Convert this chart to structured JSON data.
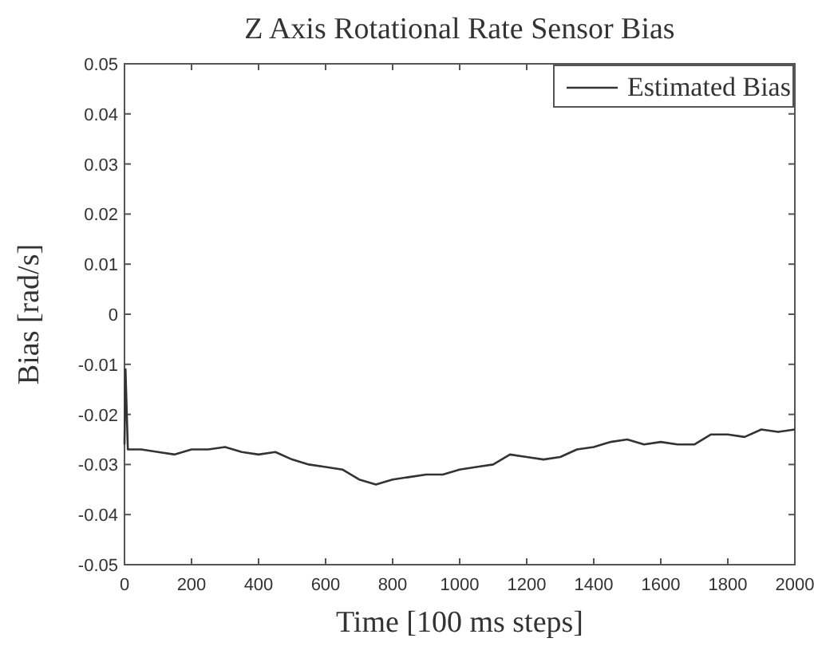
{
  "chart_data": {
    "type": "line",
    "title": "Z Axis Rotational Rate Sensor Bias",
    "xlabel": "Time [100 ms steps]",
    "ylabel": "Bias [rad/s]",
    "x": [
      0,
      3,
      10,
      50,
      100,
      150,
      200,
      250,
      300,
      350,
      400,
      450,
      500,
      550,
      600,
      650,
      700,
      750,
      800,
      850,
      900,
      950,
      1000,
      1050,
      1100,
      1150,
      1200,
      1250,
      1300,
      1350,
      1400,
      1450,
      1500,
      1550,
      1600,
      1650,
      1700,
      1750,
      1800,
      1850,
      1900,
      1950,
      2000
    ],
    "series": [
      {
        "name": "Estimated Bias",
        "color": "#333333",
        "values": [
          -0.026,
          -0.011,
          -0.027,
          -0.027,
          -0.0275,
          -0.028,
          -0.027,
          -0.027,
          -0.0265,
          -0.0275,
          -0.028,
          -0.0275,
          -0.029,
          -0.03,
          -0.0305,
          -0.031,
          -0.033,
          -0.034,
          -0.033,
          -0.0325,
          -0.032,
          -0.032,
          -0.031,
          -0.0305,
          -0.03,
          -0.028,
          -0.0285,
          -0.029,
          -0.0285,
          -0.027,
          -0.0265,
          -0.0255,
          -0.025,
          -0.026,
          -0.0255,
          -0.026,
          -0.026,
          -0.024,
          -0.024,
          -0.0245,
          -0.023,
          -0.0235,
          -0.023
        ]
      }
    ],
    "xlim": [
      0,
      2000
    ],
    "xticks": [
      0,
      200,
      400,
      600,
      800,
      1000,
      1200,
      1400,
      1600,
      1800,
      2000
    ],
    "ylim": [
      -0.05,
      0.05
    ],
    "yticks": [
      {
        "value": -0.05,
        "label": "-0.05"
      },
      {
        "value": -0.04,
        "label": "-0.04"
      },
      {
        "value": -0.03,
        "label": "-0.03"
      },
      {
        "value": -0.02,
        "label": "-0.02"
      },
      {
        "value": -0.01,
        "label": "-0.01"
      },
      0,
      {
        "value": 0.01,
        "label": "0.01"
      },
      {
        "value": 0.02,
        "label": "0.02"
      },
      {
        "value": 0.03,
        "label": "0.03"
      },
      {
        "value": 0.04,
        "label": "0.04"
      },
      {
        "value": 0.05,
        "label": "0.05"
      }
    ],
    "legend": "top right",
    "grid": false
  }
}
